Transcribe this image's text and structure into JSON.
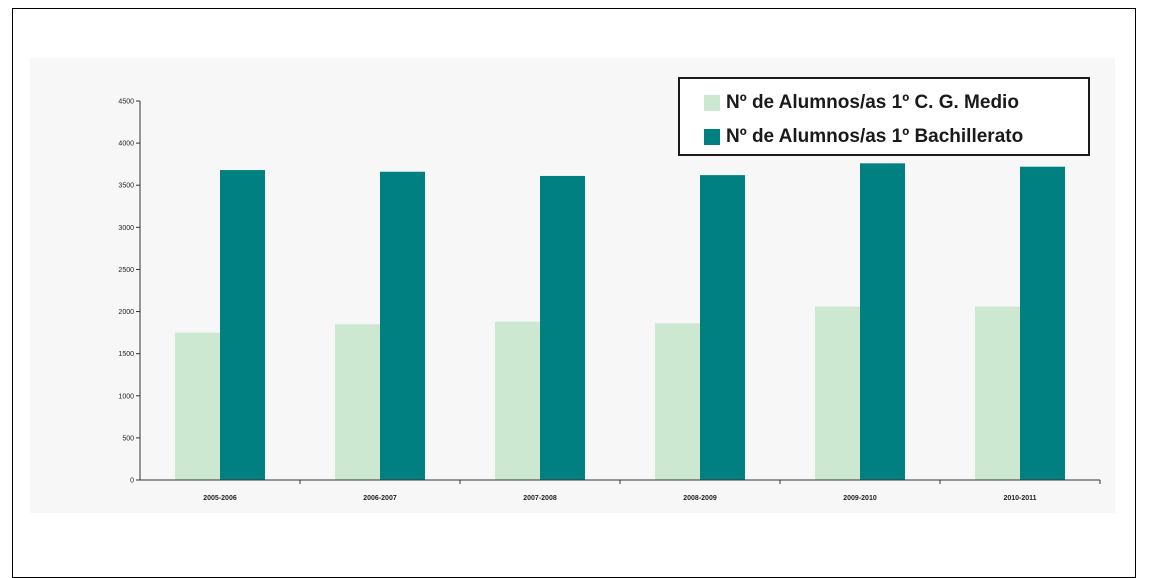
{
  "chart_data": {
    "type": "bar",
    "categories": [
      "2005-2006",
      "2006-2007",
      "2007-2008",
      "2008-2009",
      "2009-2010",
      "2010-2011"
    ],
    "series": [
      {
        "name": "Nº de Alumnos/as 1º C. G. Medio",
        "color": "#cde8d1",
        "values": [
          1750,
          1850,
          1880,
          1860,
          2060,
          2060
        ]
      },
      {
        "name": "Nº de Alumnos/as 1º Bachillerato",
        "color": "#008080",
        "values": [
          3680,
          3660,
          3610,
          3620,
          3760,
          3720
        ]
      }
    ],
    "yticks": [
      "0",
      "500",
      "1000",
      "1500",
      "2000",
      "2500",
      "3000",
      "3500",
      "4000",
      "4500"
    ],
    "ylim": [
      0,
      4500
    ],
    "grid": false,
    "legend_position": "top-right",
    "title": "",
    "xlabel": "",
    "ylabel": ""
  }
}
